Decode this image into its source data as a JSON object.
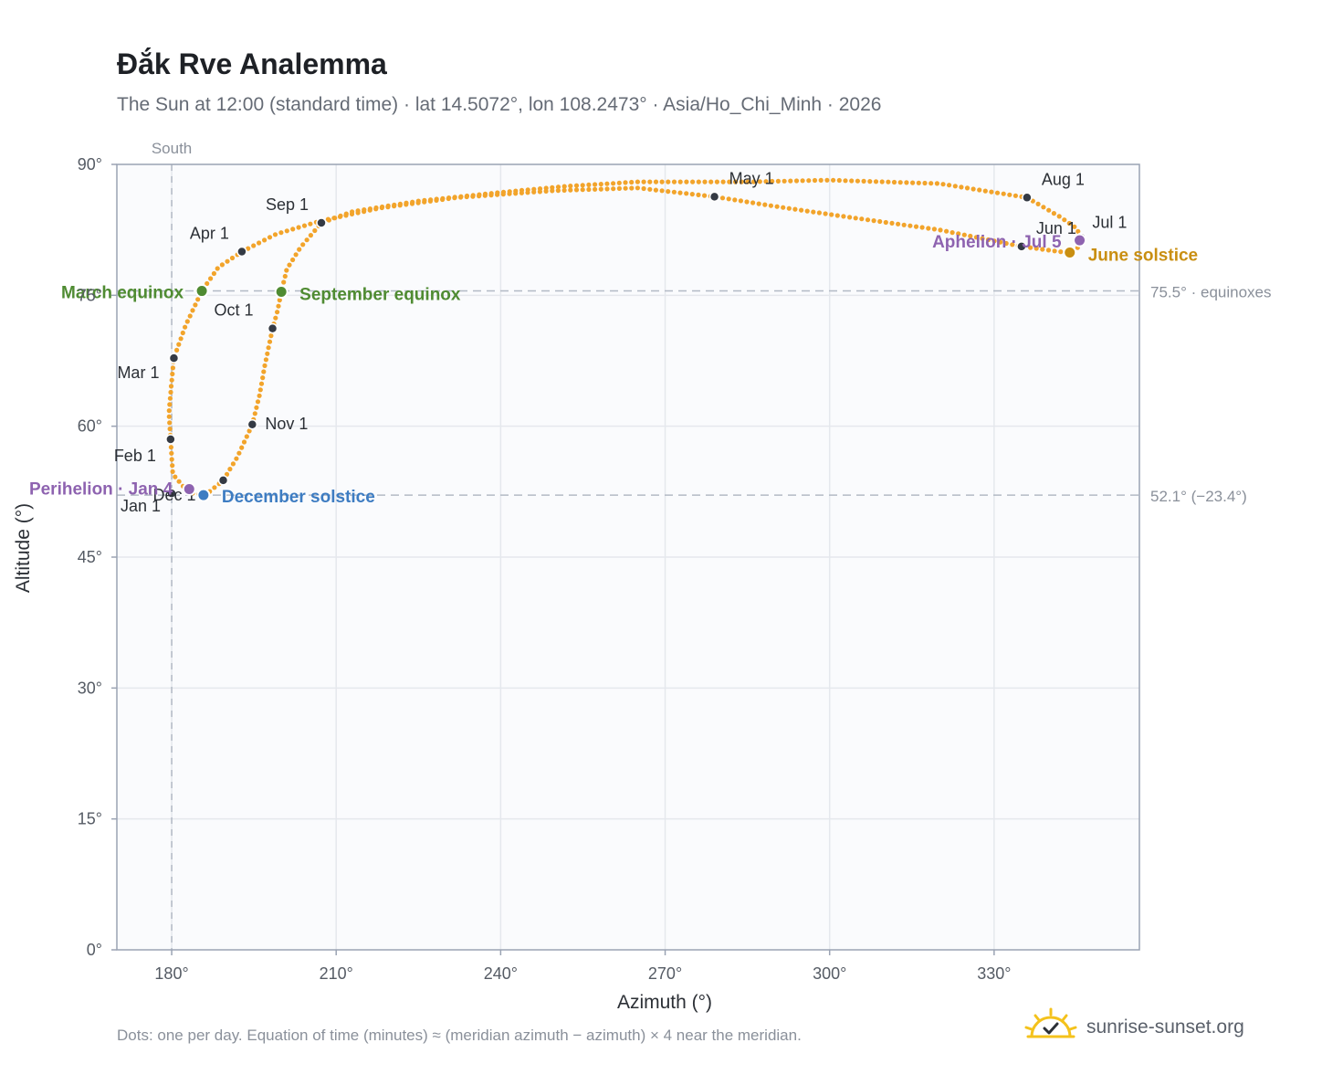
{
  "title": "Đắk Rve Analemma",
  "subtitle": "The Sun at 12:00 (standard time) · lat 14.5072°, lon 108.2473° · Asia/Ho_Chi_Minh · 2026",
  "footnote": "Dots: one per day. Equation of time (minutes) ≈ (meridian azimuth − azimuth) × 4 near the meridian.",
  "brand": {
    "name": "sunrise-sunset.org",
    "icon": "sun-logo-icon"
  },
  "colors": {
    "path": "#f2a42b",
    "month_dot": "#343a44",
    "equinox": "#4f8b32",
    "december_solstice": "#3d7cc2",
    "june_solstice": "#c98f12",
    "perihelion_aphelion": "#8e63b0",
    "grid": "#e5e8ed",
    "plot_bg": "#fafbfd",
    "frame": "#9aa3b3"
  },
  "chart_data": {
    "type": "scatter",
    "title": "Đắk Rve Analemma",
    "xlabel": "Azimuth (°)",
    "ylabel": "Altitude (°)",
    "xlim": [
      170,
      356.5
    ],
    "ylim": [
      0,
      90
    ],
    "xticks": [
      {
        "value": 180,
        "label": "180°"
      },
      {
        "value": 210,
        "label": "210°"
      },
      {
        "value": 240,
        "label": "240°"
      },
      {
        "value": 270,
        "label": "270°"
      },
      {
        "value": 300,
        "label": "300°"
      },
      {
        "value": 330,
        "label": "330°"
      }
    ],
    "yticks": [
      {
        "value": 0,
        "label": "0°"
      },
      {
        "value": 15,
        "label": "15°"
      },
      {
        "value": 30,
        "label": "30°"
      },
      {
        "value": 45,
        "label": "45°"
      },
      {
        "value": 60,
        "label": "60°"
      },
      {
        "value": 75,
        "label": "75°"
      },
      {
        "value": 90,
        "label": "90°"
      }
    ],
    "grid": true,
    "reference_lines": [
      {
        "axis": "x",
        "value": 180,
        "label": "South"
      },
      {
        "axis": "y",
        "value": 75.5,
        "label": "75.5° · equinoxes"
      },
      {
        "axis": "y",
        "value": 52.1,
        "label": "52.1° (−23.4°)"
      }
    ],
    "path": [
      [
        182.8,
        52.6
      ],
      [
        180.2,
        54.5
      ],
      [
        179.8,
        58.5
      ],
      [
        179.5,
        61.5
      ],
      [
        179.9,
        64.5
      ],
      [
        180.4,
        67.8
      ],
      [
        182.5,
        71.5
      ],
      [
        185.5,
        75.5
      ],
      [
        188.5,
        78.2
      ],
      [
        192.8,
        80.0
      ],
      [
        199.0,
        82.0
      ],
      [
        207.0,
        83.5
      ],
      [
        218.0,
        85.0
      ],
      [
        232.0,
        86.2
      ],
      [
        250.0,
        87.0
      ],
      [
        265.0,
        87.3
      ],
      [
        279.0,
        86.3
      ],
      [
        290.0,
        85.2
      ],
      [
        303.0,
        84.0
      ],
      [
        320.0,
        82.5
      ],
      [
        335.0,
        80.6
      ],
      [
        342.0,
        80.0
      ],
      [
        343.8,
        79.9
      ],
      [
        345.6,
        80.6
      ],
      [
        345.9,
        81.6
      ],
      [
        345.0,
        82.7
      ],
      [
        342.0,
        84.0
      ],
      [
        336.0,
        86.2
      ],
      [
        320.0,
        87.8
      ],
      [
        300.0,
        88.2
      ],
      [
        285.0,
        88.0
      ],
      [
        265.0,
        88.0
      ],
      [
        252.0,
        87.5
      ],
      [
        240.0,
        86.8
      ],
      [
        225.0,
        85.8
      ],
      [
        213.0,
        84.6
      ],
      [
        207.3,
        83.3
      ],
      [
        203.5,
        80.5
      ],
      [
        201.0,
        78.0
      ],
      [
        200.0,
        75.4
      ],
      [
        199.3,
        73.2
      ],
      [
        198.4,
        71.2
      ],
      [
        197.0,
        67.0
      ],
      [
        196.0,
        63.5
      ],
      [
        194.7,
        60.2
      ],
      [
        192.0,
        56.5
      ],
      [
        189.4,
        53.8
      ],
      [
        186.5,
        52.3
      ],
      [
        185.8,
        52.1
      ],
      [
        184.0,
        52.3
      ],
      [
        182.8,
        52.6
      ]
    ],
    "months": [
      {
        "label": "Jan 1",
        "azimuth": 180.0,
        "altitude": 52.3
      },
      {
        "label": "Feb 1",
        "azimuth": 179.8,
        "altitude": 58.5
      },
      {
        "label": "Mar 1",
        "azimuth": 180.4,
        "altitude": 67.8
      },
      {
        "label": "Apr 1",
        "azimuth": 192.8,
        "altitude": 80.0
      },
      {
        "label": "May 1",
        "azimuth": 279.0,
        "altitude": 86.3
      },
      {
        "label": "Jun 1",
        "azimuth": 335.0,
        "altitude": 80.6
      },
      {
        "label": "Jul 1",
        "azimuth": 345.9,
        "altitude": 81.6
      },
      {
        "label": "Aug 1",
        "azimuth": 336.0,
        "altitude": 86.2
      },
      {
        "label": "Sep 1",
        "azimuth": 207.3,
        "altitude": 83.3
      },
      {
        "label": "Oct 1",
        "azimuth": 198.4,
        "altitude": 71.2
      },
      {
        "label": "Nov 1",
        "azimuth": 194.7,
        "altitude": 60.2
      },
      {
        "label": "Dec 1",
        "azimuth": 189.4,
        "altitude": 53.8
      }
    ],
    "events": [
      {
        "label": "March equinox",
        "azimuth": 185.5,
        "altitude": 75.5,
        "color": "#4f8b32"
      },
      {
        "label": "September equinox",
        "azimuth": 200.0,
        "altitude": 75.4,
        "color": "#4f8b32"
      },
      {
        "label": "December solstice",
        "azimuth": 185.8,
        "altitude": 52.1,
        "color": "#3d7cc2"
      },
      {
        "label": "June solstice",
        "azimuth": 343.8,
        "altitude": 79.9,
        "color": "#c98f12"
      },
      {
        "label": "Perihelion · Jan 4",
        "azimuth": 183.2,
        "altitude": 52.8,
        "color": "#8e63b0"
      },
      {
        "label": "Aphelion · Jul 5",
        "azimuth": 345.6,
        "altitude": 81.3,
        "color": "#8e63b0"
      }
    ]
  }
}
